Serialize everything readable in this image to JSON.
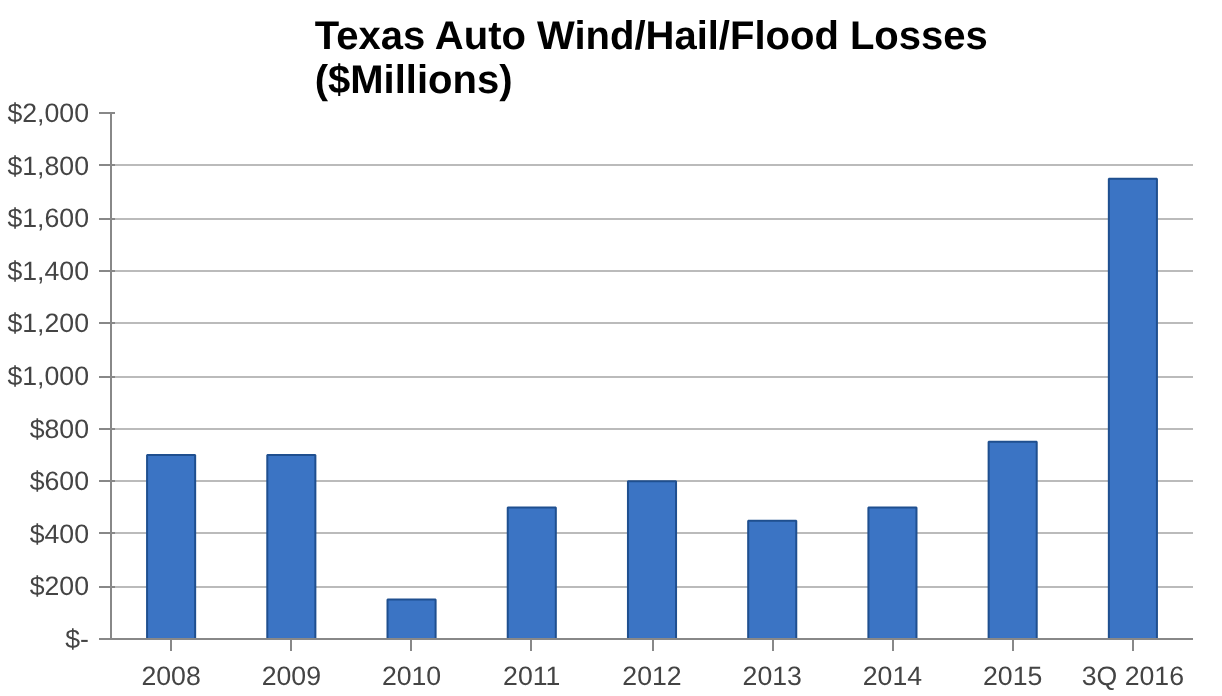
{
  "chart_data": {
    "type": "bar",
    "title": "Texas Auto Wind/Hail/Flood Losses\n($Millions)",
    "categories": [
      "2008",
      "2009",
      "2010",
      "2011",
      "2012",
      "2013",
      "2014",
      "2015",
      "3Q 2016"
    ],
    "values": [
      700,
      700,
      150,
      500,
      600,
      450,
      500,
      750,
      1750
    ],
    "color": "#3b74c4",
    "ylim": [
      0,
      2000
    ],
    "yticks": [
      {
        "value": 0,
        "label": "$-"
      },
      {
        "value": 200,
        "label": "$200"
      },
      {
        "value": 400,
        "label": "$400"
      },
      {
        "value": 600,
        "label": "$600"
      },
      {
        "value": 800,
        "label": "$800"
      },
      {
        "value": 1000,
        "label": "$1,000"
      },
      {
        "value": 1200,
        "label": "$1,200"
      },
      {
        "value": 1400,
        "label": "$1,400"
      },
      {
        "value": 1600,
        "label": "$1,600"
      },
      {
        "value": 1800,
        "label": "$1,800"
      },
      {
        "value": 2000,
        "label": "$2,000"
      }
    ],
    "grid": "y"
  }
}
